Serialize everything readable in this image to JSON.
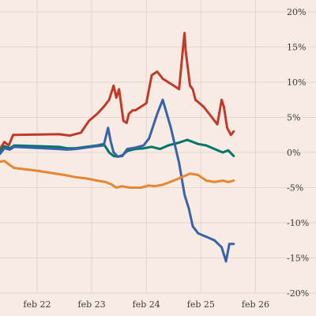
{
  "chart_data": {
    "type": "line",
    "title": "",
    "xlabel": "",
    "ylabel": "",
    "grid": true,
    "legend": "none",
    "x_ticks": [
      "feb 22",
      "feb 23",
      "feb 24",
      "feb 25",
      "feb 26"
    ],
    "x_tick_positions": [
      0.5,
      1.5,
      2.5,
      3.5,
      4.5
    ],
    "x_range": [
      -0.18,
      5.0
    ],
    "y_ticks": [
      -20,
      -15,
      -10,
      -5,
      0,
      5,
      10,
      15,
      20
    ],
    "y_tick_labels": [
      "-20%",
      "-15%",
      "-10%",
      "-5%",
      "0%",
      "5%",
      "10%",
      "15%",
      "20%"
    ],
    "ylim": [
      -20,
      20
    ],
    "series": [
      {
        "color": "#c03a2b",
        "points": [
          [
            -0.18,
            0.5
          ],
          [
            -0.1,
            1.5
          ],
          [
            -0.02,
            1.0
          ],
          [
            0.06,
            2.5
          ],
          [
            0.9,
            2.6
          ],
          [
            1.1,
            2.4
          ],
          [
            1.3,
            2.8
          ],
          [
            1.45,
            4.5
          ],
          [
            1.6,
            5.5
          ],
          [
            1.72,
            6.5
          ],
          [
            1.82,
            7.5
          ],
          [
            1.9,
            9.5
          ],
          [
            1.95,
            7.8
          ],
          [
            2.0,
            9.0
          ],
          [
            2.08,
            4.5
          ],
          [
            2.14,
            4.2
          ],
          [
            2.18,
            5.5
          ],
          [
            2.25,
            6.0
          ],
          [
            2.3,
            6.0
          ],
          [
            2.5,
            7.0
          ],
          [
            2.6,
            11.0
          ],
          [
            2.7,
            11.5
          ],
          [
            2.8,
            10.5
          ],
          [
            3.0,
            9.5
          ],
          [
            3.1,
            9.0
          ],
          [
            3.18,
            15.5
          ],
          [
            3.2,
            17.0
          ],
          [
            3.22,
            14.5
          ],
          [
            3.3,
            9.5
          ],
          [
            3.35,
            9.0
          ],
          [
            3.4,
            7.5
          ],
          [
            3.55,
            6.5
          ],
          [
            3.7,
            5.0
          ],
          [
            3.8,
            4.0
          ],
          [
            3.88,
            7.5
          ],
          [
            3.92,
            6.5
          ],
          [
            3.98,
            3.5
          ],
          [
            4.05,
            2.5
          ],
          [
            4.1,
            3.0
          ]
        ]
      },
      {
        "color": "#00756a",
        "points": [
          [
            -0.18,
            0.2
          ],
          [
            -0.1,
            0.9
          ],
          [
            0.0,
            0.6
          ],
          [
            0.08,
            1.0
          ],
          [
            0.9,
            0.8
          ],
          [
            1.05,
            0.6
          ],
          [
            1.2,
            0.6
          ],
          [
            1.4,
            0.8
          ],
          [
            1.6,
            1.0
          ],
          [
            1.72,
            1.2
          ],
          [
            1.82,
            0.0
          ],
          [
            1.9,
            -0.5
          ],
          [
            1.98,
            -0.6
          ],
          [
            2.06,
            -0.4
          ],
          [
            2.15,
            0.2
          ],
          [
            2.3,
            0.5
          ],
          [
            2.45,
            0.6
          ],
          [
            2.6,
            0.8
          ],
          [
            2.75,
            0.5
          ],
          [
            2.9,
            1.0
          ],
          [
            3.1,
            1.4
          ],
          [
            3.25,
            1.8
          ],
          [
            3.45,
            1.2
          ],
          [
            3.6,
            1.0
          ],
          [
            3.75,
            0.5
          ],
          [
            3.9,
            0.0
          ],
          [
            4.0,
            0.3
          ],
          [
            4.1,
            -0.5
          ]
        ]
      },
      {
        "color": "#3863ab",
        "points": [
          [
            -0.18,
            -0.2
          ],
          [
            -0.1,
            0.6
          ],
          [
            0.0,
            0.4
          ],
          [
            0.08,
            0.8
          ],
          [
            0.9,
            0.5
          ],
          [
            1.05,
            0.4
          ],
          [
            1.2,
            0.5
          ],
          [
            1.4,
            0.7
          ],
          [
            1.6,
            0.9
          ],
          [
            1.72,
            1.0
          ],
          [
            1.8,
            3.5
          ],
          [
            1.85,
            1.5
          ],
          [
            1.9,
            0.0
          ],
          [
            1.98,
            -0.6
          ],
          [
            2.06,
            -0.5
          ],
          [
            2.15,
            0.5
          ],
          [
            2.3,
            0.7
          ],
          [
            2.45,
            1.0
          ],
          [
            2.55,
            2.0
          ],
          [
            2.7,
            5.5
          ],
          [
            2.8,
            7.5
          ],
          [
            2.95,
            3.5
          ],
          [
            3.1,
            -1.5
          ],
          [
            3.2,
            -6.0
          ],
          [
            3.28,
            -8.0
          ],
          [
            3.35,
            -10.5
          ],
          [
            3.45,
            -11.5
          ],
          [
            3.6,
            -12.0
          ],
          [
            3.75,
            -12.5
          ],
          [
            3.88,
            -13.5
          ],
          [
            3.96,
            -15.5
          ],
          [
            4.02,
            -13.0
          ],
          [
            4.1,
            -13.0
          ]
        ]
      },
      {
        "color": "#e58631",
        "points": [
          [
            -0.18,
            -1.3
          ],
          [
            -0.1,
            -1.2
          ],
          [
            0.0,
            -1.8
          ],
          [
            0.08,
            -2.2
          ],
          [
            0.5,
            -2.6
          ],
          [
            1.0,
            -3.2
          ],
          [
            1.2,
            -3.5
          ],
          [
            1.4,
            -3.7
          ],
          [
            1.6,
            -4.0
          ],
          [
            1.75,
            -4.2
          ],
          [
            1.85,
            -4.5
          ],
          [
            1.95,
            -5.0
          ],
          [
            2.05,
            -4.8
          ],
          [
            2.2,
            -5.0
          ],
          [
            2.4,
            -5.0
          ],
          [
            2.55,
            -4.7
          ],
          [
            2.65,
            -4.8
          ],
          [
            2.8,
            -4.6
          ],
          [
            3.0,
            -4.0
          ],
          [
            3.15,
            -3.5
          ],
          [
            3.3,
            -3.0
          ],
          [
            3.45,
            -3.2
          ],
          [
            3.6,
            -4.0
          ],
          [
            3.75,
            -4.2
          ],
          [
            3.9,
            -4.0
          ],
          [
            4.0,
            -4.2
          ],
          [
            4.1,
            -4.0
          ]
        ]
      }
    ]
  }
}
